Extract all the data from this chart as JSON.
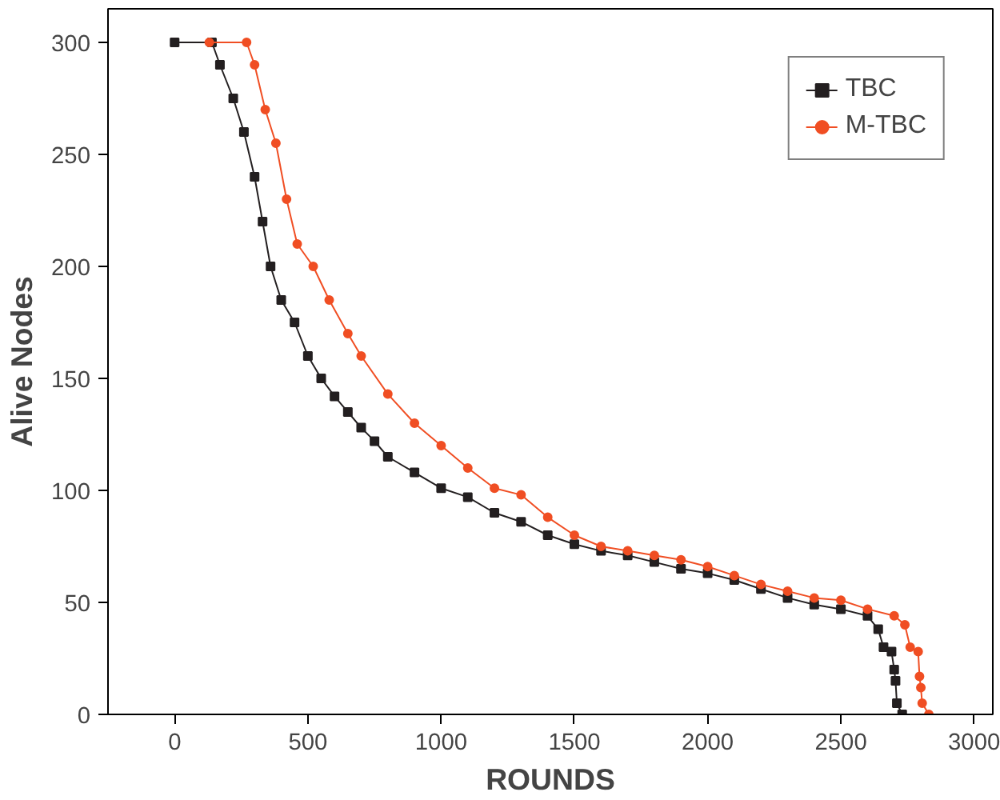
{
  "chart_data": {
    "type": "line",
    "xlabel": "ROUNDS",
    "ylabel": "Alive Nodes",
    "xlim": [
      -250,
      3070
    ],
    "ylim": [
      0,
      315
    ],
    "xticks": [
      0,
      500,
      1000,
      1500,
      2000,
      2500,
      3000
    ],
    "yticks": [
      0,
      50,
      100,
      150,
      200,
      250,
      300
    ],
    "grid": false,
    "legend": "top right",
    "line_style": "solid",
    "series": [
      {
        "name": "TBC",
        "color": "#231f20",
        "marker": "square",
        "x": [
          0,
          140,
          170,
          220,
          260,
          300,
          330,
          360,
          400,
          450,
          500,
          550,
          600,
          650,
          700,
          750,
          800,
          900,
          1000,
          1100,
          1200,
          1300,
          1400,
          1500,
          1600,
          1700,
          1800,
          1900,
          2000,
          2100,
          2200,
          2300,
          2400,
          2500,
          2600,
          2640,
          2660,
          2690,
          2700,
          2705,
          2710,
          2730
        ],
        "values": [
          300,
          300,
          290,
          275,
          260,
          240,
          220,
          200,
          185,
          175,
          160,
          150,
          142,
          135,
          128,
          122,
          115,
          108,
          101,
          97,
          90,
          86,
          80,
          76,
          73,
          71,
          68,
          65,
          63,
          60,
          56,
          52,
          49,
          47,
          44,
          38,
          30,
          28,
          20,
          15,
          5,
          0
        ]
      },
      {
        "name": "M-TBC",
        "color": "#f04e23",
        "marker": "circle",
        "x": [
          130,
          270,
          300,
          340,
          380,
          420,
          460,
          520,
          580,
          650,
          700,
          800,
          900,
          1000,
          1100,
          1200,
          1300,
          1400,
          1500,
          1600,
          1700,
          1800,
          1900,
          2000,
          2100,
          2200,
          2300,
          2400,
          2500,
          2600,
          2700,
          2740,
          2760,
          2790,
          2795,
          2800,
          2805,
          2830
        ],
        "values": [
          300,
          300,
          290,
          270,
          255,
          230,
          210,
          200,
          185,
          170,
          160,
          143,
          130,
          120,
          110,
          101,
          98,
          88,
          80,
          75,
          73,
          71,
          69,
          66,
          62,
          58,
          55,
          52,
          51,
          47,
          44,
          40,
          30,
          28,
          17,
          12,
          5,
          0
        ]
      }
    ]
  }
}
